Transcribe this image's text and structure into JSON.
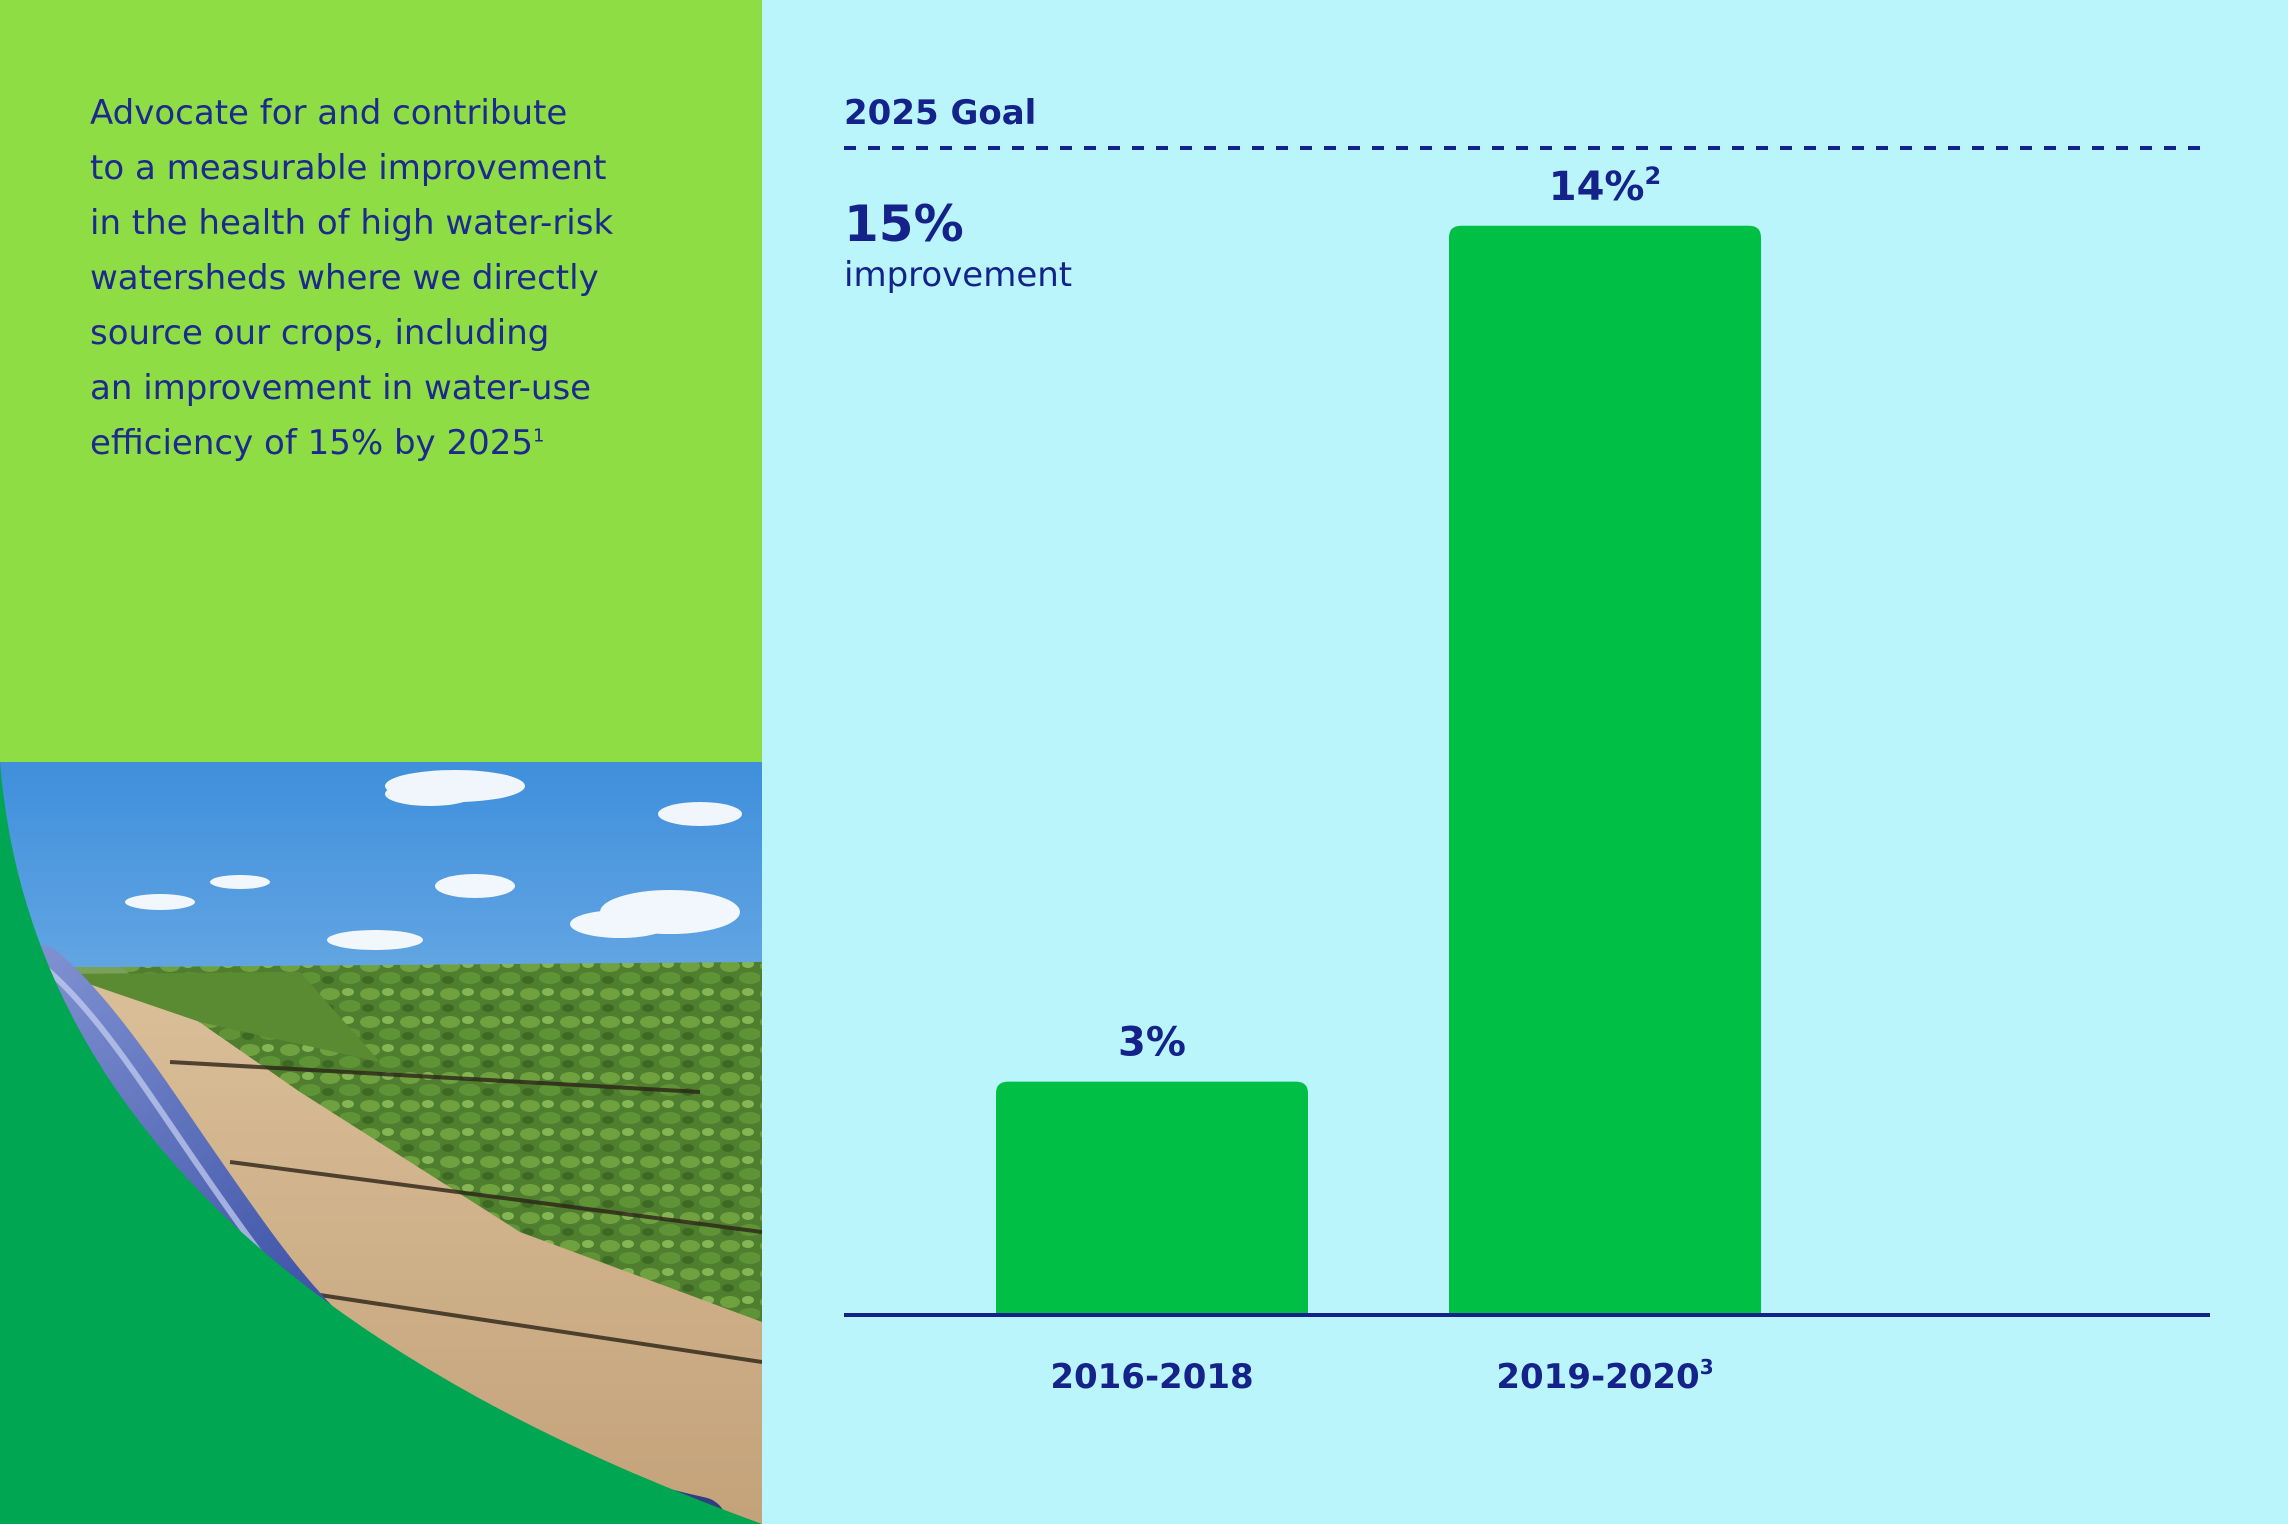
{
  "intro": {
    "lines": [
      "Advocate for and contribute",
      "to a measurable improvement",
      "in the health of high water-risk",
      "watersheds where we directly",
      "source our crops, including",
      "an improvement in water-use",
      "efficiency of 15% by 2025"
    ],
    "footnote": "1"
  },
  "colors": {
    "left_panel": "#8fdd45",
    "chart_background": "#b9f5fb",
    "bar": "#00bf45",
    "navy": "#14228a",
    "curve": "#00a651"
  },
  "icons": {
    "photo": "irrigated-crop-field-photo"
  },
  "chart_data": {
    "type": "bar",
    "categories": [
      "2016-2018",
      "2019-2020"
    ],
    "category_footnotes": [
      "",
      "3"
    ],
    "values": [
      3,
      14
    ],
    "value_labels": [
      "3%",
      "14%"
    ],
    "value_footnotes": [
      "",
      "2"
    ],
    "ylim": [
      0,
      15
    ],
    "goal": {
      "label": "2025 Goal",
      "value": 15,
      "value_label": "15%",
      "caption": "improvement",
      "line_style": "dashed"
    },
    "grid": false,
    "legend": "none"
  }
}
